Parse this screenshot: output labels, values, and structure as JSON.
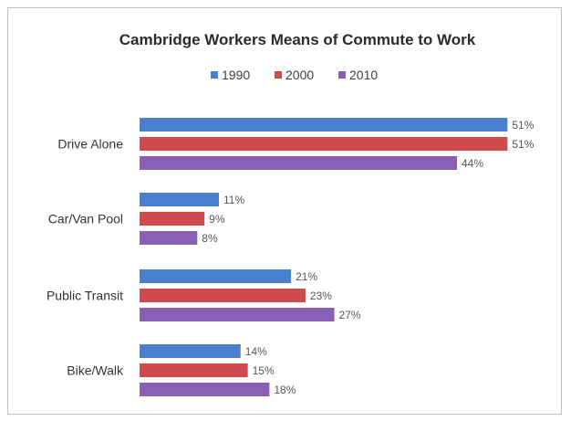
{
  "chart_data": {
    "type": "bar",
    "orientation": "horizontal",
    "title": "Cambridge Workers Means of Commute to Work",
    "categories": [
      "Drive Alone",
      "Car/Van Pool",
      "Public Transit",
      "Bike/Walk"
    ],
    "series": [
      {
        "name": "1990",
        "values": [
          51,
          11,
          21,
          14
        ],
        "color": "#4a7fcf"
      },
      {
        "name": "2000",
        "values": [
          51,
          9,
          23,
          15
        ],
        "color": "#cf4a4a"
      },
      {
        "name": "2010",
        "values": [
          44,
          8,
          27,
          18
        ],
        "color": "#8a5fb6"
      }
    ],
    "value_suffix": "%",
    "xlim": [
      0,
      55
    ],
    "grid": false,
    "legend": "top-center",
    "xlabel": "",
    "ylabel": ""
  }
}
